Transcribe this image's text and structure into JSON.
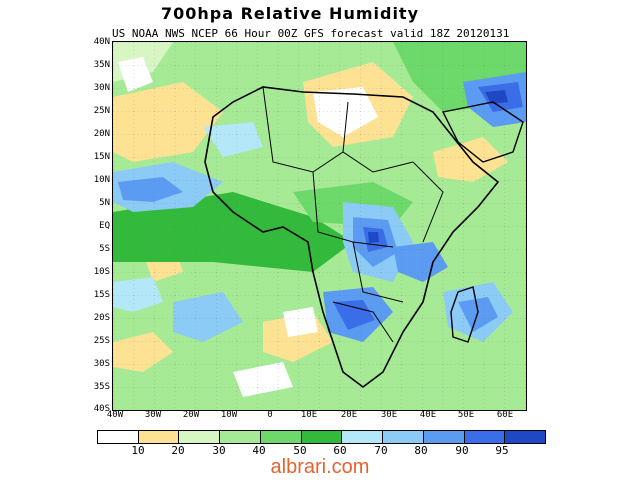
{
  "title": "700hpa Relative Humidity",
  "subtitle": "US NOAA NWS NCEP 66 Hour 00Z GFS forecast valid 18Z 20120131",
  "lat_labels": [
    "40N",
    "35N",
    "30N",
    "25N",
    "20N",
    "15N",
    "10N",
    "5N",
    "EQ",
    "5S",
    "10S",
    "15S",
    "20S",
    "25S",
    "30S",
    "35S",
    "40S"
  ],
  "lon_labels": [
    "40W",
    "30W",
    "20W",
    "10W",
    "0",
    "10E",
    "20E",
    "30E",
    "40E",
    "50E",
    "60E"
  ],
  "legend": {
    "ticks": [
      "10",
      "20",
      "30",
      "40",
      "50",
      "60",
      "70",
      "80",
      "90",
      "95"
    ],
    "colors": [
      "#ffffff",
      "#fde294",
      "#d8f5c4",
      "#a6ea96",
      "#6cd96a",
      "#33ba3c",
      "#b4e7f7",
      "#8ccbf6",
      "#5b9bf2",
      "#3a6ee8",
      "#1f48c4"
    ]
  },
  "watermark": "albrari.com"
}
